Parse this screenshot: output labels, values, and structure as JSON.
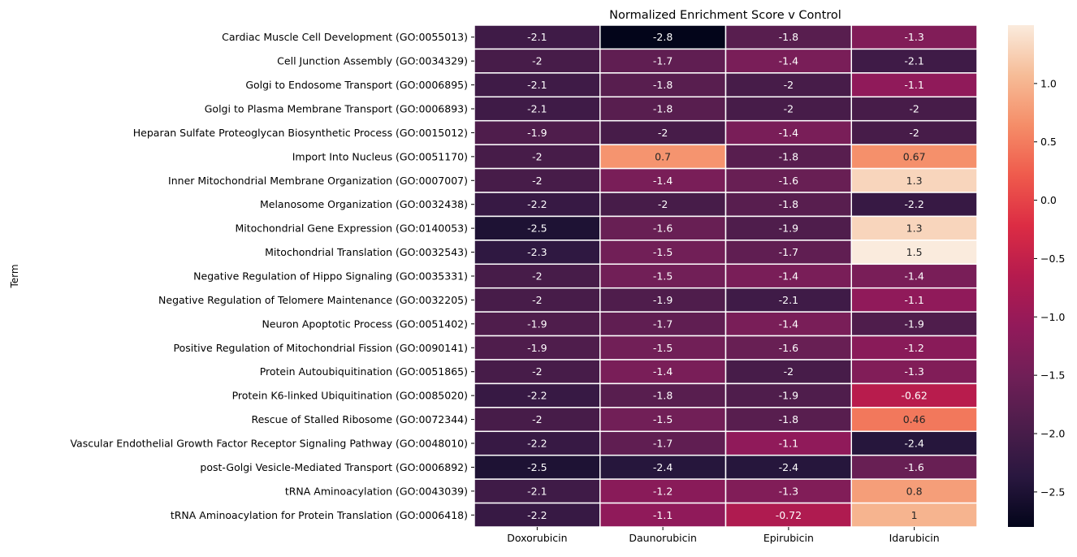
{
  "chart_data": {
    "type": "heatmap",
    "title": "Normalized Enrichment Score v Control",
    "xlabel": "",
    "ylabel": "Term",
    "columns": [
      "Doxorubicin",
      "Daunorubicin",
      "Epirubicin",
      "Idarubicin"
    ],
    "rows": [
      "Cardiac Muscle Cell Development (GO:0055013)",
      "Cell Junction Assembly (GO:0034329)",
      "Golgi to Endosome Transport (GO:0006895)",
      "Golgi to Plasma Membrane Transport (GO:0006893)",
      "Heparan Sulfate Proteoglycan Biosynthetic Process (GO:0015012)",
      "Import Into Nucleus (GO:0051170)",
      "Inner Mitochondrial Membrane Organization (GO:0007007)",
      "Melanosome Organization (GO:0032438)",
      "Mitochondrial Gene Expression (GO:0140053)",
      "Mitochondrial Translation (GO:0032543)",
      "Negative Regulation of Hippo Signaling (GO:0035331)",
      "Negative Regulation of Telomere Maintenance (GO:0032205)",
      "Neuron Apoptotic Process (GO:0051402)",
      "Positive Regulation of Mitochondrial Fission (GO:0090141)",
      "Protein Autoubiquitination (GO:0051865)",
      "Protein K6-linked Ubiquitination (GO:0085020)",
      "Rescue of Stalled Ribosome (GO:0072344)",
      "Vascular Endothelial Growth Factor Receptor Signaling Pathway (GO:0048010)",
      "post-Golgi Vesicle-Mediated Transport (GO:0006892)",
      "tRNA Aminoacylation (GO:0043039)",
      "tRNA Aminoacylation for Protein Translation (GO:0006418)"
    ],
    "values": [
      [
        -2.1,
        -2.8,
        -1.8,
        -1.3
      ],
      [
        -2.0,
        -1.7,
        -1.4,
        -2.1
      ],
      [
        -2.1,
        -1.8,
        -2.0,
        -1.1
      ],
      [
        -2.1,
        -1.8,
        -2.0,
        -2.0
      ],
      [
        -1.9,
        -2.0,
        -1.4,
        -2.0
      ],
      [
        -2.0,
        0.7,
        -1.8,
        0.67
      ],
      [
        -2.0,
        -1.4,
        -1.6,
        1.3
      ],
      [
        -2.2,
        -2.0,
        -1.8,
        -2.2
      ],
      [
        -2.5,
        -1.6,
        -1.9,
        1.3
      ],
      [
        -2.3,
        -1.5,
        -1.7,
        1.5
      ],
      [
        -2.0,
        -1.5,
        -1.4,
        -1.4
      ],
      [
        -2.0,
        -1.9,
        -2.1,
        -1.1
      ],
      [
        -1.9,
        -1.7,
        -1.4,
        -1.9
      ],
      [
        -1.9,
        -1.5,
        -1.6,
        -1.2
      ],
      [
        -2.0,
        -1.4,
        -2.0,
        -1.3
      ],
      [
        -2.2,
        -1.8,
        -1.9,
        -0.62
      ],
      [
        -2.0,
        -1.5,
        -1.8,
        0.46
      ],
      [
        -2.2,
        -1.7,
        -1.1,
        -2.4
      ],
      [
        -2.5,
        -2.4,
        -2.4,
        -1.6
      ],
      [
        -2.1,
        -1.2,
        -1.3,
        0.8
      ],
      [
        -2.2,
        -1.1,
        -0.72,
        1.0
      ]
    ],
    "annotations": [
      [
        "-2.1",
        "-2.8",
        "-1.8",
        "-1.3"
      ],
      [
        "-2",
        "-1.7",
        "-1.4",
        "-2.1"
      ],
      [
        "-2.1",
        "-1.8",
        "-2",
        "-1.1"
      ],
      [
        "-2.1",
        "-1.8",
        "-2",
        "-2"
      ],
      [
        "-1.9",
        "-2",
        "-1.4",
        "-2"
      ],
      [
        "-2",
        "0.7",
        "-1.8",
        "0.67"
      ],
      [
        "-2",
        "-1.4",
        "-1.6",
        "1.3"
      ],
      [
        "-2.2",
        "-2",
        "-1.8",
        "-2.2"
      ],
      [
        "-2.5",
        "-1.6",
        "-1.9",
        "1.3"
      ],
      [
        "-2.3",
        "-1.5",
        "-1.7",
        "1.5"
      ],
      [
        "-2",
        "-1.5",
        "-1.4",
        "-1.4"
      ],
      [
        "-2",
        "-1.9",
        "-2.1",
        "-1.1"
      ],
      [
        "-1.9",
        "-1.7",
        "-1.4",
        "-1.9"
      ],
      [
        "-1.9",
        "-1.5",
        "-1.6",
        "-1.2"
      ],
      [
        "-2",
        "-1.4",
        "-2",
        "-1.3"
      ],
      [
        "-2.2",
        "-1.8",
        "-1.9",
        "-0.62"
      ],
      [
        "-2",
        "-1.5",
        "-1.8",
        "0.46"
      ],
      [
        "-2.2",
        "-1.7",
        "-1.1",
        "-2.4"
      ],
      [
        "-2.5",
        "-2.4",
        "-2.4",
        "-1.6"
      ],
      [
        "-2.1",
        "-1.2",
        "-1.3",
        "0.8"
      ],
      [
        "-2.2",
        "-1.1",
        "-0.72",
        "1"
      ]
    ],
    "colorbar": {
      "colormap": "rocket",
      "vmin": -2.8,
      "vmax": 1.5,
      "ticks": [
        1.0,
        0.5,
        0.0,
        -0.5,
        -1.0,
        -1.5,
        -2.0,
        -2.5
      ],
      "tick_labels": [
        "1.0",
        "0.5",
        "0.0",
        "−0.5",
        "−1.0",
        "−1.5",
        "−2.0",
        "−2.5"
      ]
    },
    "grid": false,
    "cell_separator_color": "#ffffff"
  }
}
